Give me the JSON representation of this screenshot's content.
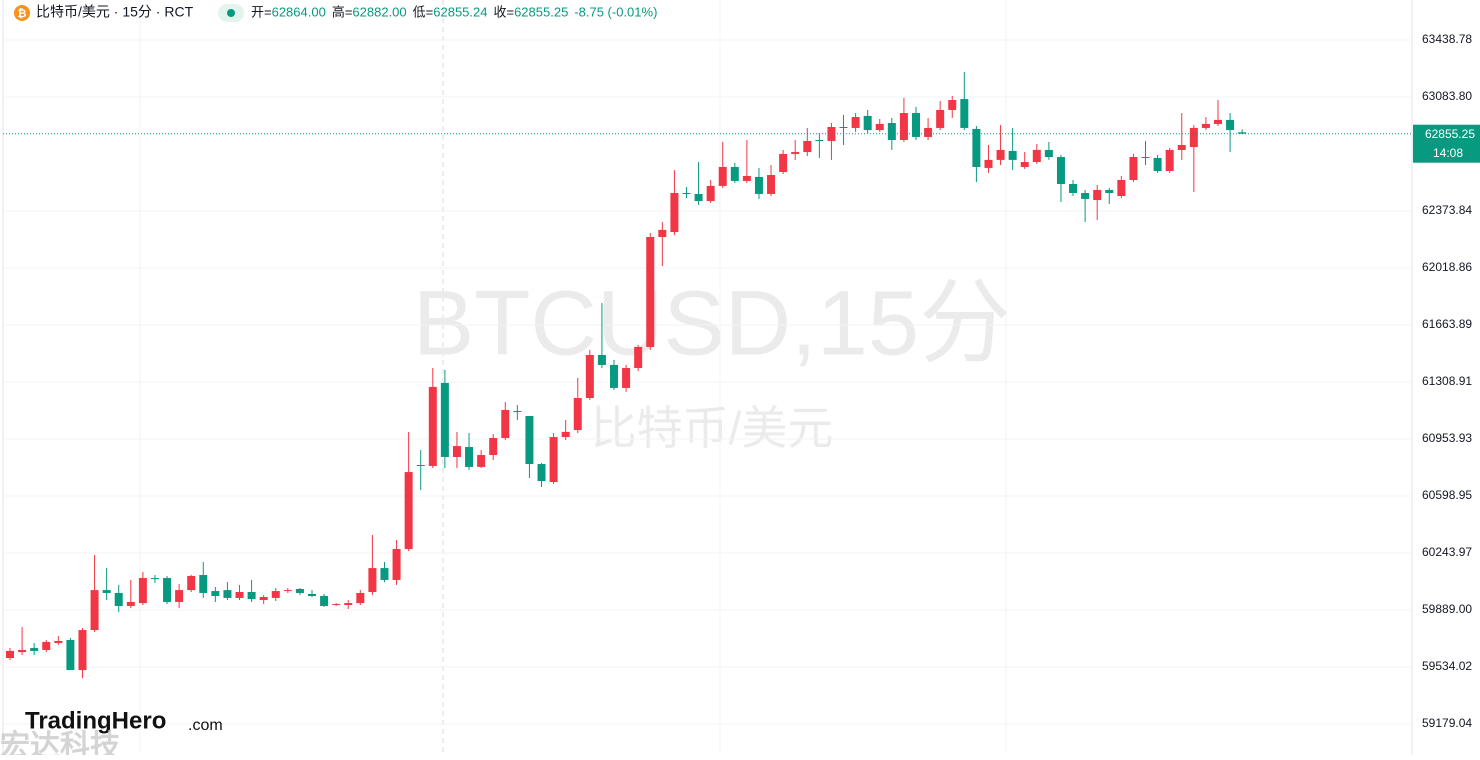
{
  "chart_data": {
    "type": "candlestick",
    "symbol": "比特币/美元 · 15分 · RCT",
    "legend": [
      {
        "label": "开=",
        "value": "62864.00"
      },
      {
        "label": "高=",
        "value": "62882.00"
      },
      {
        "label": "低=",
        "value": "62855.24"
      },
      {
        "label": "收=",
        "value": "62855.25"
      }
    ],
    "change": "-8.75 (-0.01%)",
    "watermark": "BTCUSD,15分",
    "watermark_subtitle": "比特币/美元",
    "logo": "TradingHero",
    "logo_suffix": ".com",
    "logo_cn": "宏达科技",
    "last_price": 62855.25,
    "countdown": "14:08",
    "up_color": "#f23645",
    "down_color": "#089981",
    "ylim": [
      59004.6,
      63687.9
    ],
    "yticks": [
      63438.78,
      {
        "value": 63083.8,
        "label": "63083.80"
      },
      62373.84,
      62018.86,
      61663.89,
      61308.91,
      60953.93,
      60598.95,
      60243.97,
      {
        "value": 59889,
        "label": "59889.00"
      },
      59534.02,
      59179.04
    ],
    "grid": true,
    "open": [
      59590,
      59627,
      59652,
      59640,
      59683,
      59702,
      59515,
      59764,
      60013,
      59995,
      59914,
      59932,
      60088,
      60088,
      59939,
      60013,
      60107,
      60007,
      60013,
      59964,
      60001,
      59951,
      59964,
      60007,
      60020,
      59989,
      59976,
      59920,
      59920,
      59932,
      60001,
      60150,
      60076,
      60269,
      60792,
      60786,
      61303,
      60842,
      60904,
      60780,
      60854,
      60960,
      61128,
      61097,
      60798,
      60686,
      60966,
      61010,
      61209,
      61477,
      61415,
      61272,
      61396,
      61527,
      62212,
      62243,
      62486,
      62480,
      62436,
      62530,
      62648,
      62561,
      62586,
      62480,
      62617,
      62729,
      62741,
      62816,
      62810,
      62897,
      62891,
      62966,
      62878,
      62922,
      62816,
      62984,
      62835,
      62891,
      63003,
      63071,
      62885,
      62642,
      62692,
      62748,
      62648,
      62679,
      62754,
      62710,
      62542,
      62486,
      62442,
      62505,
      62467,
      62567,
      62710,
      62704,
      62623,
      62754,
      62772,
      62891,
      62916,
      62941,
      62864
    ],
    "high": [
      59652,
      59783,
      59683,
      59702,
      59727,
      59715,
      59777,
      60231,
      60150,
      60045,
      60076,
      60126,
      60107,
      60101,
      60051,
      60107,
      60188,
      60032,
      60063,
      60045,
      60076,
      59982,
      60026,
      60026,
      60026,
      60013,
      59989,
      59932,
      59951,
      60013,
      60356,
      60188,
      60325,
      60998,
      60885,
      61396,
      61384,
      60998,
      60991,
      60885,
      60985,
      61184,
      61166,
      61097,
      60804,
      60991,
      61072,
      61334,
      61508,
      61801,
      61446,
      61415,
      61539,
      62237,
      62305,
      62629,
      62523,
      62679,
      62567,
      62804,
      62673,
      62816,
      62642,
      62660,
      62754,
      62816,
      62891,
      62860,
      62922,
      62972,
      62984,
      63003,
      62947,
      62953,
      63078,
      63022,
      62953,
      63059,
      63090,
      63240,
      62903,
      62785,
      62909,
      62891,
      62741,
      62791,
      62804,
      62723,
      62567,
      62505,
      62536,
      62517,
      62592,
      62729,
      62810,
      62723,
      62766,
      62984,
      62909,
      62959,
      63065,
      62984,
      62882
    ],
    "low": [
      59578,
      59609,
      59609,
      59627,
      59671,
      59515,
      59465,
      59752,
      59951,
      59876,
      59901,
      59920,
      60057,
      59926,
      59901,
      60001,
      59964,
      59939,
      59951,
      59951,
      59939,
      59926,
      59945,
      59995,
      59982,
      59970,
      59908,
      59914,
      59895,
      59920,
      59982,
      60063,
      60045,
      60256,
      60636,
      60773,
      60773,
      60773,
      60761,
      60773,
      60823,
      60948,
      61072,
      60711,
      60655,
      60674,
      60948,
      60991,
      61197,
      61396,
      61259,
      61247,
      61377,
      61508,
      62031,
      62224,
      62455,
      62411,
      62424,
      62517,
      62548,
      62548,
      62449,
      62467,
      62604,
      62692,
      62716,
      62704,
      62692,
      62785,
      62866,
      62860,
      62866,
      62754,
      62804,
      62816,
      62816,
      62878,
      62953,
      62878,
      62554,
      62611,
      62660,
      62629,
      62635,
      62667,
      62692,
      62430,
      62467,
      62305,
      62318,
      62417,
      62455,
      62554,
      62660,
      62611,
      62611,
      62692,
      62492,
      62878,
      62903,
      62741,
      62855.24
    ],
    "close": [
      59634,
      59640,
      59634,
      59690,
      59696,
      59515,
      59764,
      60013,
      59995,
      59914,
      59939,
      60088,
      60082,
      59939,
      60013,
      60101,
      59995,
      59976,
      59964,
      60001,
      59957,
      59970,
      60007,
      60013,
      59995,
      59976,
      59914,
      59926,
      59932,
      59995,
      60150,
      60076,
      60269,
      60748,
      60786,
      61278,
      60842,
      60910,
      60780,
      60854,
      60960,
      61135,
      61122,
      60798,
      60692,
      60966,
      60998,
      61209,
      61477,
      61415,
      61272,
      61396,
      61527,
      62212,
      62256,
      62486,
      62480,
      62436,
      62530,
      62648,
      62561,
      62592,
      62480,
      62598,
      62729,
      62741,
      62810,
      62810,
      62897,
      62891,
      62959,
      62878,
      62916,
      62816,
      62984,
      62835,
      62891,
      63003,
      63065,
      62891,
      62648,
      62692,
      62754,
      62692,
      62679,
      62754,
      62710,
      62542,
      62486,
      62449,
      62505,
      62486,
      62567,
      62710,
      62704,
      62623,
      62754,
      62785,
      62891,
      62916,
      62941,
      62878,
      62855.25
    ]
  }
}
